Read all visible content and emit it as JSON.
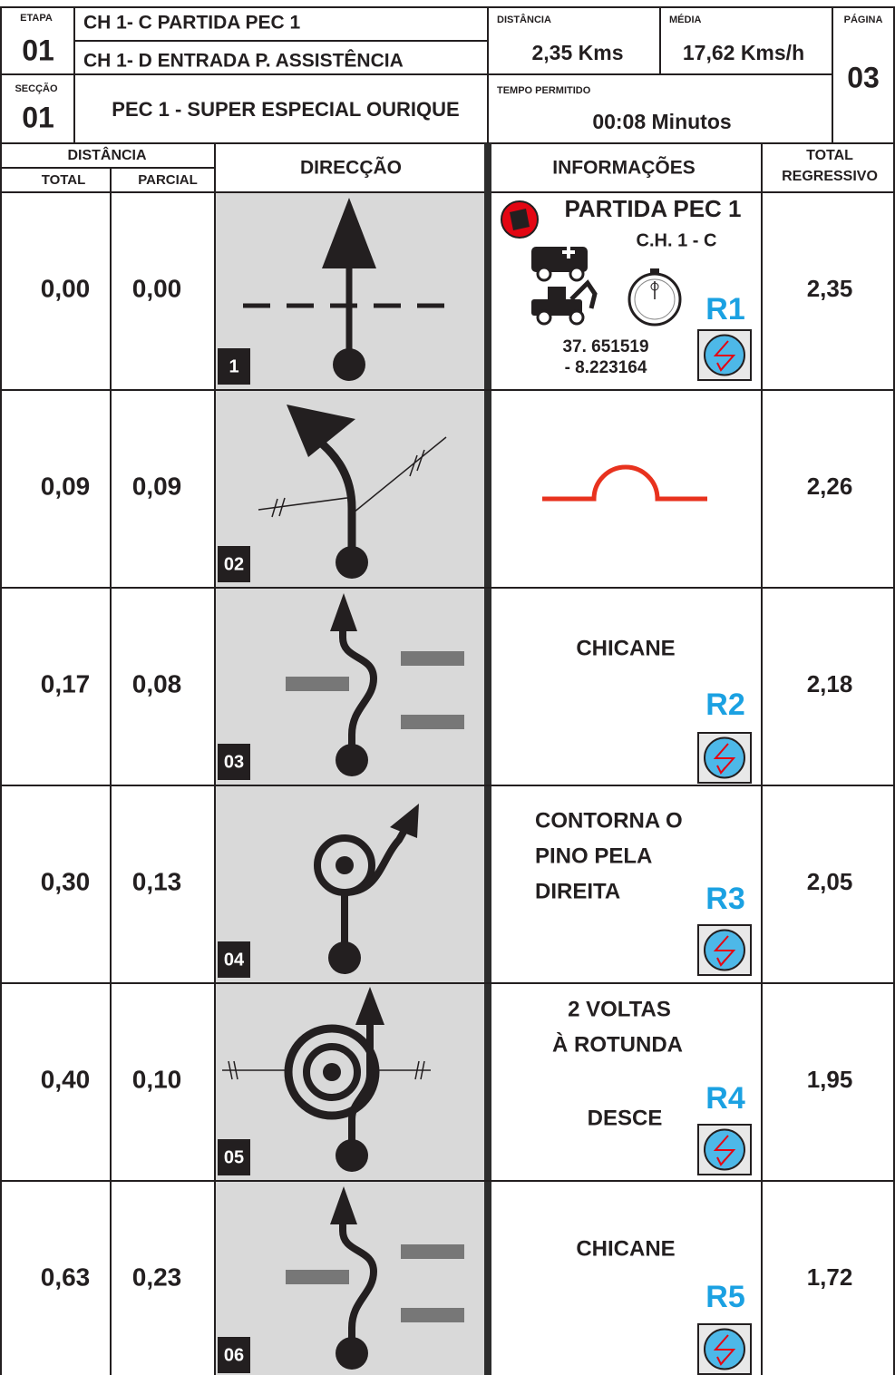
{
  "header": {
    "etapa_label": "ETAPA",
    "etapa": "01",
    "seccao_label": "SECÇÃO",
    "seccao": "01",
    "ch_start": "CH 1- C PARTIDA PEC 1",
    "ch_end": "CH 1- D ENTRADA P. ASSISTÊNCIA",
    "section_title": "PEC 1 - SUPER ESPECIAL OURIQUE",
    "distancia_label": "DISTÂNCIA",
    "distancia": "2,35 Kms",
    "media_label": "MÉDIA",
    "media": "17,62 Kms/h",
    "tempo_label": "TEMPO PERMITIDO",
    "tempo": "00:08 Minutos",
    "pagina_label": "PÁGINA",
    "pagina": "03"
  },
  "columns": {
    "distancia": "DISTÂNCIA",
    "total": "TOTAL",
    "parcial": "PARCIAL",
    "direccao": "DIRECÇÃO",
    "informacoes": "INFORMAÇÕES",
    "regressivo_line1": "TOTAL",
    "regressivo_line2": "REGRESSIVO"
  },
  "rows": [
    {
      "number": "1",
      "total": "0,00",
      "parcial": "0,00",
      "info": [
        "PARTIDA PEC 1",
        "C.H. 1 - C",
        "37. 651519",
        "- 8.223164"
      ],
      "ref": "R1",
      "regressivo": "2,35"
    },
    {
      "number": "02",
      "total": "0,09",
      "parcial": "0,09",
      "info": [],
      "regressivo": "2,26"
    },
    {
      "number": "03",
      "total": "0,17",
      "parcial": "0,08",
      "info": [
        "CHICANE"
      ],
      "ref": "R2",
      "regressivo": "2,18"
    },
    {
      "number": "04",
      "total": "0,30",
      "parcial": "0,13",
      "info": [
        "CONTORNA O",
        "PINO PELA",
        "DIREITA"
      ],
      "ref": "R3",
      "regressivo": "2,05"
    },
    {
      "number": "05",
      "total": "0,40",
      "parcial": "0,10",
      "info": [
        "2 VOLTAS",
        "À ROTUNDA",
        "DESCE"
      ],
      "ref": "R4",
      "regressivo": "1,95"
    },
    {
      "number": "06",
      "total": "0,63",
      "parcial": "0,23",
      "info": [
        "CHICANE"
      ],
      "ref": "R5",
      "regressivo": "1,72"
    }
  ]
}
